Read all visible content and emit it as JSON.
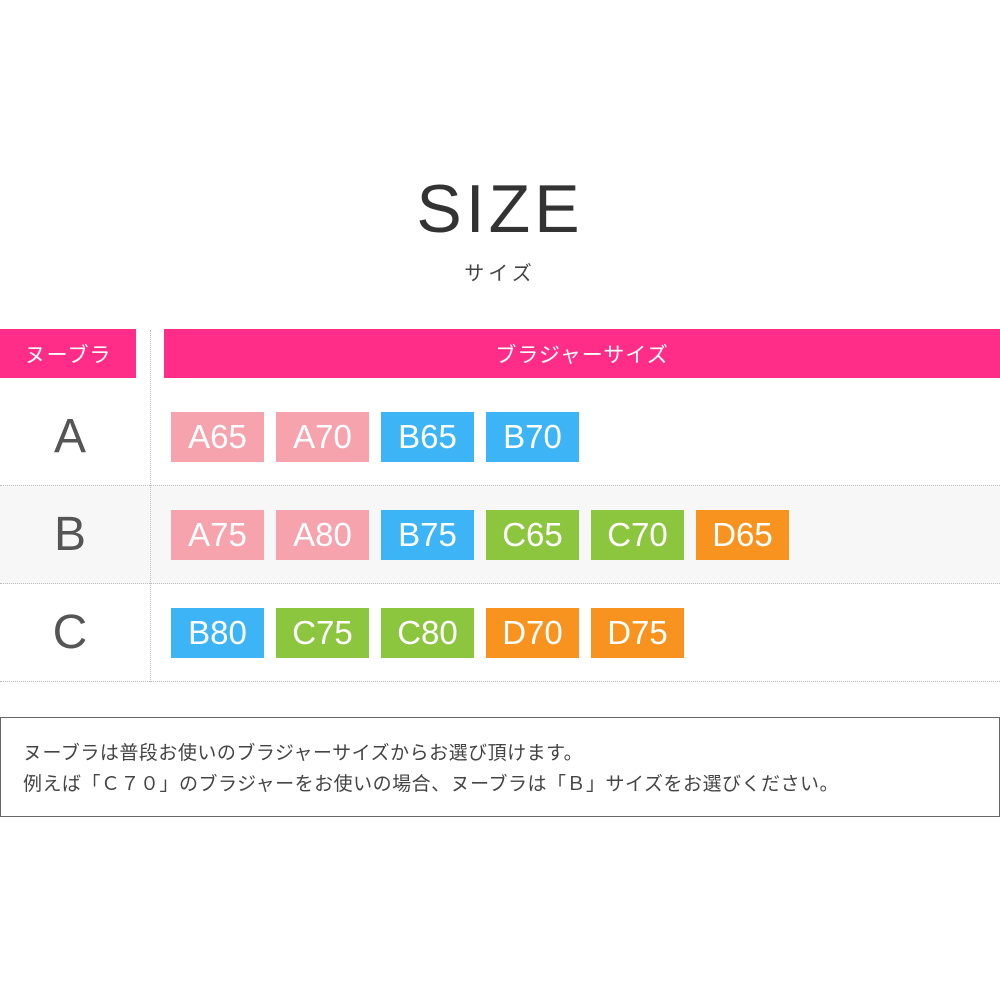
{
  "title": "SIZE",
  "subtitle": "サイズ",
  "table": {
    "header_left": "ヌーブラ",
    "header_right": "ブラジャーサイズ",
    "header_color": "#ff2d87",
    "colors": {
      "A": "#f7a3ad",
      "B": "#3db4f5",
      "C": "#8cc63f",
      "D": "#f7931e"
    },
    "rows": [
      {
        "label": "A",
        "sizes": [
          "A65",
          "A70",
          "B65",
          "B70"
        ]
      },
      {
        "label": "B",
        "sizes": [
          "A75",
          "A80",
          "B75",
          "C65",
          "C70",
          "D65"
        ]
      },
      {
        "label": "C",
        "sizes": [
          "B80",
          "C75",
          "C80",
          "D70",
          "D75"
        ]
      }
    ]
  },
  "note": {
    "line1": "ヌーブラは普段お使いのブラジャーサイズからお選び頂けます。",
    "line2": "例えば「Ｃ７０」のブラジャーをお使いの場合、ヌーブラは「Ｂ」サイズをお選びください。"
  }
}
